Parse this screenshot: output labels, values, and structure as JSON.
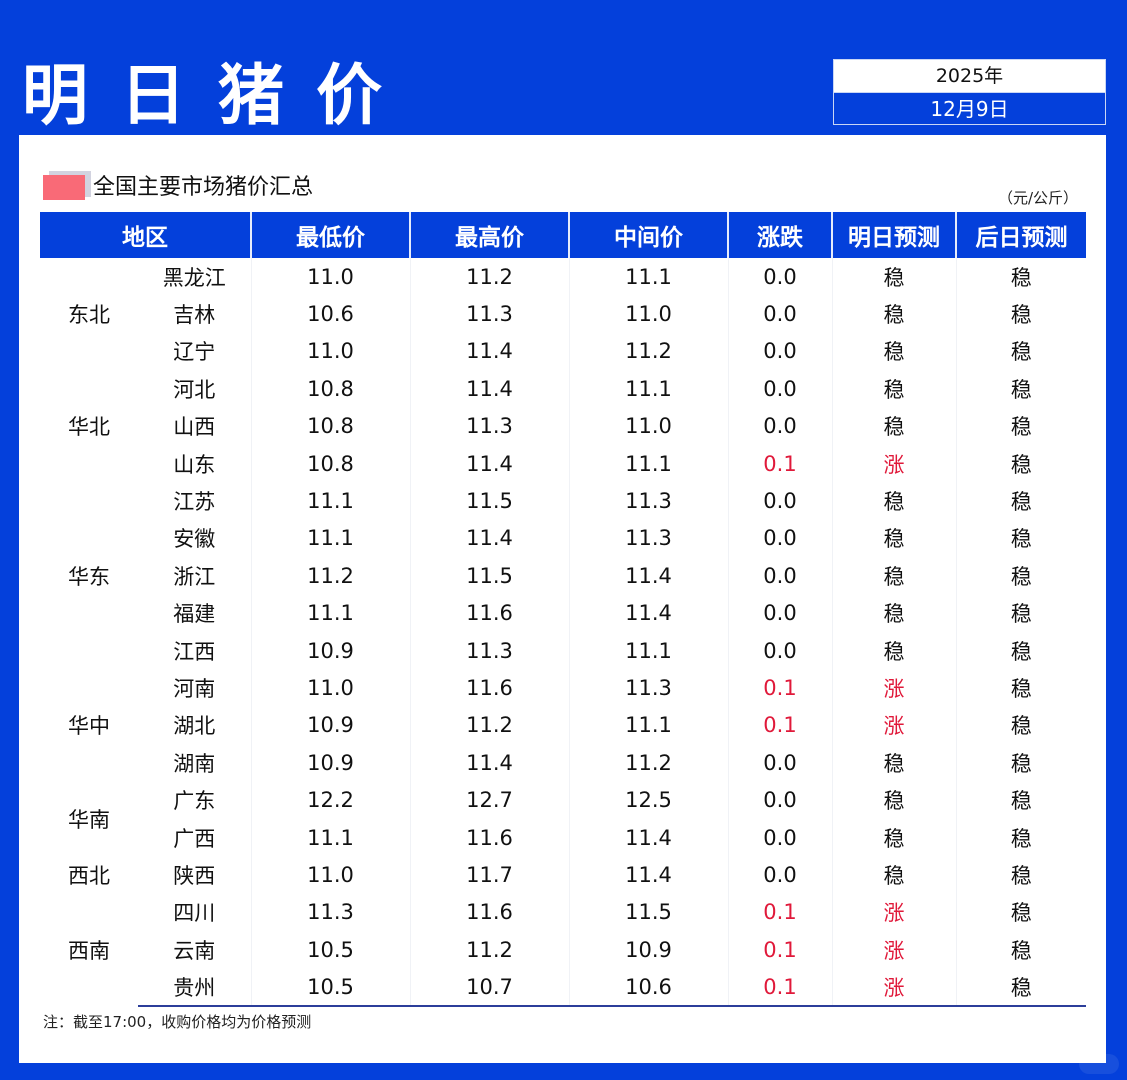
{
  "header": {
    "title": "明日猪价",
    "year": "2025年",
    "date": "12月9日"
  },
  "section": {
    "title": "全国主要市场猪价汇总",
    "unit": "（元/公斤）",
    "colors": {
      "marker": "#f96a77",
      "accent": "#0440db",
      "up": "#e0193a"
    }
  },
  "table": {
    "headers": [
      "地区",
      "最低价",
      "最高价",
      "中间价",
      "涨跌",
      "明日预测",
      "后日预测"
    ],
    "groups": [
      {
        "region": "东北",
        "rowspan": 3
      },
      {
        "region": "华北",
        "rowspan": 3
      },
      {
        "region": "华东",
        "rowspan": 5
      },
      {
        "region": "华中",
        "rowspan": 3
      },
      {
        "region": "华南",
        "rowspan": 2
      },
      {
        "region": "西北",
        "rowspan": 1
      },
      {
        "region": "西南",
        "rowspan": 3
      }
    ],
    "rows": [
      {
        "province": "黑龙江",
        "low": "11.0",
        "high": "11.2",
        "mid": "11.1",
        "change": "0.0",
        "tomorrow": "稳",
        "after": "稳",
        "up": false
      },
      {
        "province": "吉林",
        "low": "10.6",
        "high": "11.3",
        "mid": "11.0",
        "change": "0.0",
        "tomorrow": "稳",
        "after": "稳",
        "up": false
      },
      {
        "province": "辽宁",
        "low": "11.0",
        "high": "11.4",
        "mid": "11.2",
        "change": "0.0",
        "tomorrow": "稳",
        "after": "稳",
        "up": false
      },
      {
        "province": "河北",
        "low": "10.8",
        "high": "11.4",
        "mid": "11.1",
        "change": "0.0",
        "tomorrow": "稳",
        "after": "稳",
        "up": false
      },
      {
        "province": "山西",
        "low": "10.8",
        "high": "11.3",
        "mid": "11.0",
        "change": "0.0",
        "tomorrow": "稳",
        "after": "稳",
        "up": false
      },
      {
        "province": "山东",
        "low": "10.8",
        "high": "11.4",
        "mid": "11.1",
        "change": "0.1",
        "tomorrow": "涨",
        "after": "稳",
        "up": true
      },
      {
        "province": "江苏",
        "low": "11.1",
        "high": "11.5",
        "mid": "11.3",
        "change": "0.0",
        "tomorrow": "稳",
        "after": "稳",
        "up": false
      },
      {
        "province": "安徽",
        "low": "11.1",
        "high": "11.4",
        "mid": "11.3",
        "change": "0.0",
        "tomorrow": "稳",
        "after": "稳",
        "up": false
      },
      {
        "province": "浙江",
        "low": "11.2",
        "high": "11.5",
        "mid": "11.4",
        "change": "0.0",
        "tomorrow": "稳",
        "after": "稳",
        "up": false
      },
      {
        "province": "福建",
        "low": "11.1",
        "high": "11.6",
        "mid": "11.4",
        "change": "0.0",
        "tomorrow": "稳",
        "after": "稳",
        "up": false
      },
      {
        "province": "江西",
        "low": "10.9",
        "high": "11.3",
        "mid": "11.1",
        "change": "0.0",
        "tomorrow": "稳",
        "after": "稳",
        "up": false
      },
      {
        "province": "河南",
        "low": "11.0",
        "high": "11.6",
        "mid": "11.3",
        "change": "0.1",
        "tomorrow": "涨",
        "after": "稳",
        "up": true
      },
      {
        "province": "湖北",
        "low": "10.9",
        "high": "11.2",
        "mid": "11.1",
        "change": "0.1",
        "tomorrow": "涨",
        "after": "稳",
        "up": true
      },
      {
        "province": "湖南",
        "low": "10.9",
        "high": "11.4",
        "mid": "11.2",
        "change": "0.0",
        "tomorrow": "稳",
        "after": "稳",
        "up": false
      },
      {
        "province": "广东",
        "low": "12.2",
        "high": "12.7",
        "mid": "12.5",
        "change": "0.0",
        "tomorrow": "稳",
        "after": "稳",
        "up": false
      },
      {
        "province": "广西",
        "low": "11.1",
        "high": "11.6",
        "mid": "11.4",
        "change": "0.0",
        "tomorrow": "稳",
        "after": "稳",
        "up": false
      },
      {
        "province": "陕西",
        "low": "11.0",
        "high": "11.7",
        "mid": "11.4",
        "change": "0.0",
        "tomorrow": "稳",
        "after": "稳",
        "up": false
      },
      {
        "province": "四川",
        "low": "11.3",
        "high": "11.6",
        "mid": "11.5",
        "change": "0.1",
        "tomorrow": "涨",
        "after": "稳",
        "up": true
      },
      {
        "province": "云南",
        "low": "10.5",
        "high": "11.2",
        "mid": "10.9",
        "change": "0.1",
        "tomorrow": "涨",
        "after": "稳",
        "up": true
      },
      {
        "province": "贵州",
        "low": "10.5",
        "high": "10.7",
        "mid": "10.6",
        "change": "0.1",
        "tomorrow": "涨",
        "after": "稳",
        "up": true
      }
    ]
  },
  "footer": {
    "note": "注：截至17:00，收购价格均为价格预测"
  }
}
